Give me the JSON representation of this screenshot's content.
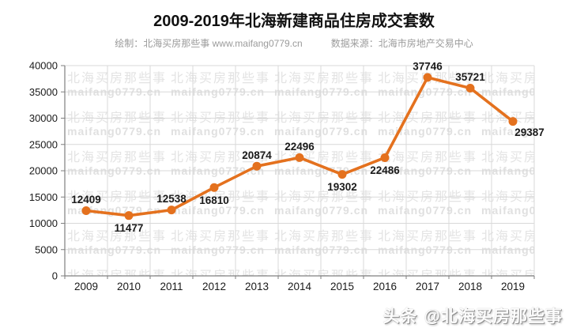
{
  "header": {
    "title": "2009-2019年北海新建商品住房成交套数",
    "credit": "绘制：北海买房那些事 www.maifang0779.cn",
    "source": "数据来源：北海市房地产交易中心"
  },
  "watermark": {
    "line1": "北海买房那些事",
    "line2": "maifang0779.cn"
  },
  "footer_watermark": {
    "brand": "头条",
    "handle": "@北海买房那些事"
  },
  "colors": {
    "line": "#E4711E",
    "grid": "#D9D9D9",
    "axis": "#7F7F7F",
    "text": "#1A1A1A",
    "subtitle": "#9B9B9B",
    "watermark": "#E3E3E3"
  },
  "chart_data": {
    "type": "line",
    "title": "2009-2019年北海新建商品住房成交套数",
    "xlabel": "",
    "ylabel": "",
    "categories": [
      "2009",
      "2010",
      "2011",
      "2012",
      "2013",
      "2014",
      "2015",
      "2016",
      "2017",
      "2018",
      "2019"
    ],
    "values": [
      12409,
      11477,
      12538,
      16810,
      20874,
      22496,
      19302,
      22486,
      37746,
      35721,
      29387
    ],
    "ylim": [
      0,
      40000
    ],
    "ytick_step": 5000,
    "yticks": [
      0,
      5000,
      10000,
      15000,
      20000,
      25000,
      30000,
      35000,
      40000
    ],
    "grid": true,
    "legend": false,
    "marker": "circle",
    "label_positions": [
      "above",
      "below",
      "above",
      "below",
      "above",
      "above",
      "below",
      "below",
      "above",
      "above",
      "below-right"
    ]
  }
}
